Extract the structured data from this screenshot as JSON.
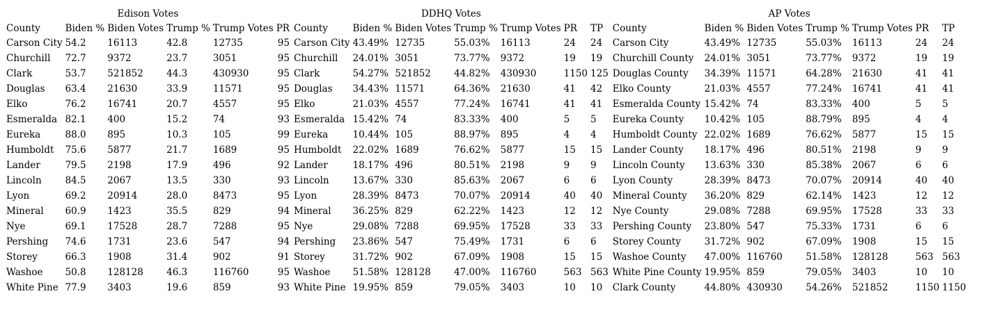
{
  "tables": [
    {
      "title": "Edison Votes",
      "columns": [
        "County",
        "Biden %",
        "Biden Votes",
        "Trump %",
        "Trump Votes",
        "PR"
      ],
      "align": [
        "l",
        "l",
        "l",
        "l",
        "l",
        "r"
      ],
      "rows": [
        [
          "Carson City",
          "54.2",
          "16113",
          "42.8",
          "12735",
          "95"
        ],
        [
          "Churchill",
          "72.7",
          "9372",
          "23.7",
          "3051",
          "95"
        ],
        [
          "Clark",
          "53.7",
          "521852",
          "44.3",
          "430930",
          "95"
        ],
        [
          "Douglas",
          "63.4",
          "21630",
          "33.9",
          "11571",
          "95"
        ],
        [
          "Elko",
          "76.2",
          "16741",
          "20.7",
          "4557",
          "95"
        ],
        [
          "Esmeralda",
          "82.1",
          "400",
          "15.2",
          "74",
          "93"
        ],
        [
          "Eureka",
          "88.0",
          "895",
          "10.3",
          "105",
          "99"
        ],
        [
          "Humboldt",
          "75.6",
          "5877",
          "21.7",
          "1689",
          "95"
        ],
        [
          "Lander",
          "79.5",
          "2198",
          "17.9",
          "496",
          "92"
        ],
        [
          "Lincoln",
          "84.5",
          "2067",
          "13.5",
          "330",
          "93"
        ],
        [
          "Lyon",
          "69.2",
          "20914",
          "28.0",
          "8473",
          "95"
        ],
        [
          "Mineral",
          "60.9",
          "1423",
          "35.5",
          "829",
          "94"
        ],
        [
          "Nye",
          "69.1",
          "17528",
          "28.7",
          "7288",
          "95"
        ],
        [
          "Pershing",
          "74.6",
          "1731",
          "23.6",
          "547",
          "94"
        ],
        [
          "Storey",
          "66.3",
          "1908",
          "31.4",
          "902",
          "91"
        ],
        [
          "Washoe",
          "50.8",
          "128128",
          "46.3",
          "116760",
          "95"
        ],
        [
          "White Pine",
          "77.9",
          "3403",
          "19.6",
          "859",
          "93"
        ]
      ]
    },
    {
      "title": "DDHQ Votes",
      "columns": [
        "County",
        "Biden %",
        "Biden Votes",
        "Trump %",
        "Trump Votes",
        "PR",
        "TP"
      ],
      "align": [
        "l",
        "l",
        "l",
        "l",
        "l",
        "l",
        "l"
      ],
      "rows": [
        [
          "Carson City",
          "43.49%",
          "12735",
          "55.03%",
          "16113",
          "24",
          "24"
        ],
        [
          "Churchill",
          "24.01%",
          "3051",
          "73.77%",
          "9372",
          "19",
          "19"
        ],
        [
          "Clark",
          "54.27%",
          "521852",
          "44.82%",
          "430930",
          "1150",
          "125"
        ],
        [
          "Douglas",
          "34.43%",
          "11571",
          "64.36%",
          "21630",
          "41",
          "42"
        ],
        [
          "Elko",
          "21.03%",
          "4557",
          "77.24%",
          "16741",
          "41",
          "41"
        ],
        [
          "Esmeralda",
          "15.42%",
          "74",
          "83.33%",
          "400",
          "5",
          "5"
        ],
        [
          "Eureka",
          "10.44%",
          "105",
          "88.97%",
          "895",
          "4",
          "4"
        ],
        [
          "Humboldt",
          "22.02%",
          "1689",
          "76.62%",
          "5877",
          "15",
          "15"
        ],
        [
          "Lander",
          "18.17%",
          "496",
          "80.51%",
          "2198",
          "9",
          "9"
        ],
        [
          "Lincoln",
          "13.67%",
          "330",
          "85.63%",
          "2067",
          "6",
          "6"
        ],
        [
          "Lyon",
          "28.39%",
          "8473",
          "70.07%",
          "20914",
          "40",
          "40"
        ],
        [
          "Mineral",
          "36.25%",
          "829",
          "62.22%",
          "1423",
          "12",
          "12"
        ],
        [
          "Nye",
          "29.08%",
          "7288",
          "69.95%",
          "17528",
          "33",
          "33"
        ],
        [
          "Pershing",
          "23.86%",
          "547",
          "75.49%",
          "1731",
          "6",
          "6"
        ],
        [
          "Storey",
          "31.72%",
          "902",
          "67.09%",
          "1908",
          "15",
          "15"
        ],
        [
          "Washoe",
          "51.58%",
          "128128",
          "47.00%",
          "116760",
          "563",
          "563"
        ],
        [
          "White Pine",
          "19.95%",
          "859",
          "79.05%",
          "3403",
          "10",
          "10"
        ]
      ]
    },
    {
      "title": "AP Votes",
      "columns": [
        "County",
        "Biden %",
        "Biden Votes",
        "Trump %",
        "Trump Votes",
        "PR",
        "TP"
      ],
      "align": [
        "l",
        "l",
        "l",
        "l",
        "l",
        "l",
        "l"
      ],
      "rows": [
        [
          "Carson City",
          "43.49%",
          "12735",
          "55.03%",
          "16113",
          "24",
          "24"
        ],
        [
          "Churchill County",
          "24.01%",
          "3051",
          "73.77%",
          "9372",
          "19",
          "19"
        ],
        [
          "Douglas County",
          "34.39%",
          "11571",
          "64.28%",
          "21630",
          "41",
          "41"
        ],
        [
          "Elko County",
          "21.03%",
          "4557",
          "77.24%",
          "16741",
          "41",
          "41"
        ],
        [
          "Esmeralda County",
          "15.42%",
          "74",
          "83.33%",
          "400",
          "5",
          "5"
        ],
        [
          "Eureka County",
          "10.42%",
          "105",
          "88.79%",
          "895",
          "4",
          "4"
        ],
        [
          "Humboldt County",
          "22.02%",
          "1689",
          "76.62%",
          "5877",
          "15",
          "15"
        ],
        [
          "Lander County",
          "18.17%",
          "496",
          "80.51%",
          "2198",
          "9",
          "9"
        ],
        [
          "Lincoln County",
          "13.63%",
          "330",
          "85.38%",
          "2067",
          "6",
          "6"
        ],
        [
          "Lyon County",
          "28.39%",
          "8473",
          "70.07%",
          "20914",
          "40",
          "40"
        ],
        [
          "Mineral County",
          "36.20%",
          "829",
          "62.14%",
          "1423",
          "12",
          "12"
        ],
        [
          "Nye County",
          "29.08%",
          "7288",
          "69.95%",
          "17528",
          "33",
          "33"
        ],
        [
          "Pershing County",
          "23.80%",
          "547",
          "75.33%",
          "1731",
          "6",
          "6"
        ],
        [
          "Storey County",
          "31.72%",
          "902",
          "67.09%",
          "1908",
          "15",
          "15"
        ],
        [
          "Washoe County",
          "47.00%",
          "116760",
          "51.58%",
          "128128",
          "563",
          "563"
        ],
        [
          "White Pine County",
          "19.95%",
          "859",
          "79.05%",
          "3403",
          "10",
          "10"
        ],
        [
          "Clark County",
          "44.80%",
          "430930",
          "54.26%",
          "521852",
          "1150",
          "1150"
        ]
      ]
    }
  ]
}
